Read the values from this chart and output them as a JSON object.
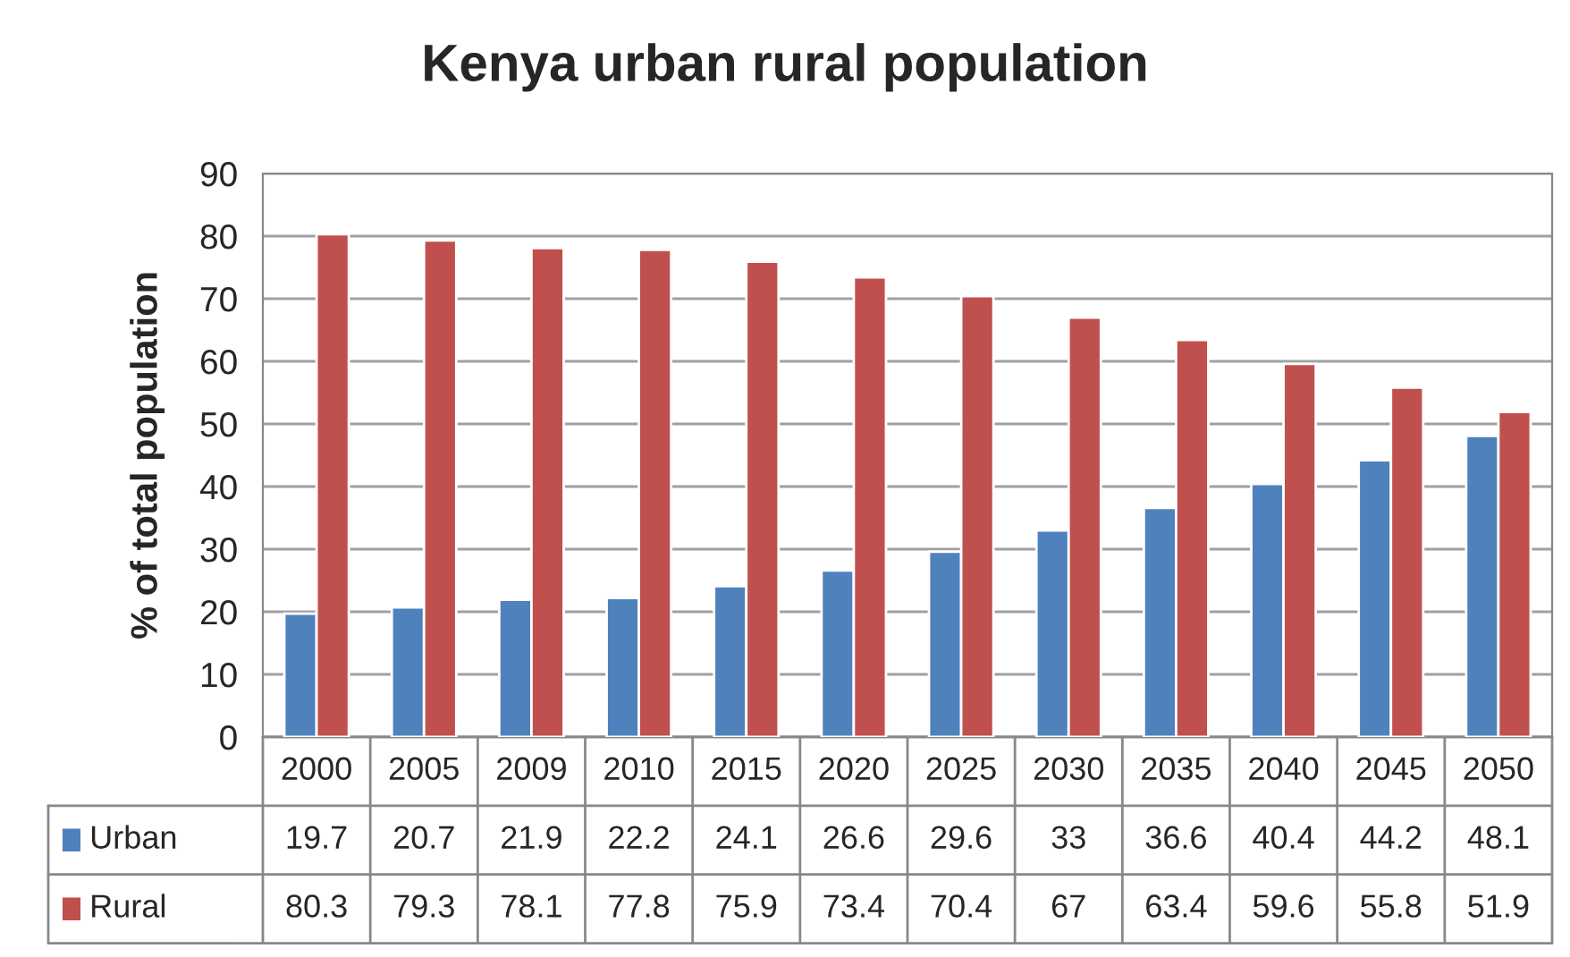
{
  "chart_data": {
    "type": "bar",
    "title": "Kenya urban rural population",
    "ylabel": "% of total population",
    "categories": [
      "2000",
      "2005",
      "2009",
      "2010",
      "2015",
      "2020",
      "2025",
      "2030",
      "2035",
      "2040",
      "2045",
      "2050"
    ],
    "series": [
      {
        "name": "Urban",
        "color": "#4f81bd",
        "values": [
          19.7,
          20.7,
          21.9,
          22.2,
          24.1,
          26.6,
          29.6,
          33,
          36.6,
          40.4,
          44.2,
          48.1
        ]
      },
      {
        "name": "Rural",
        "color": "#c0504d",
        "values": [
          80.3,
          79.3,
          78.1,
          77.8,
          75.9,
          73.4,
          70.4,
          67,
          63.4,
          59.6,
          55.8,
          51.9
        ]
      }
    ],
    "ylim": [
      0,
      90
    ],
    "yticks": [
      0,
      10,
      20,
      30,
      40,
      50,
      60,
      70,
      80,
      90
    ],
    "grid": "y",
    "legend": "left",
    "data_labels": true
  }
}
